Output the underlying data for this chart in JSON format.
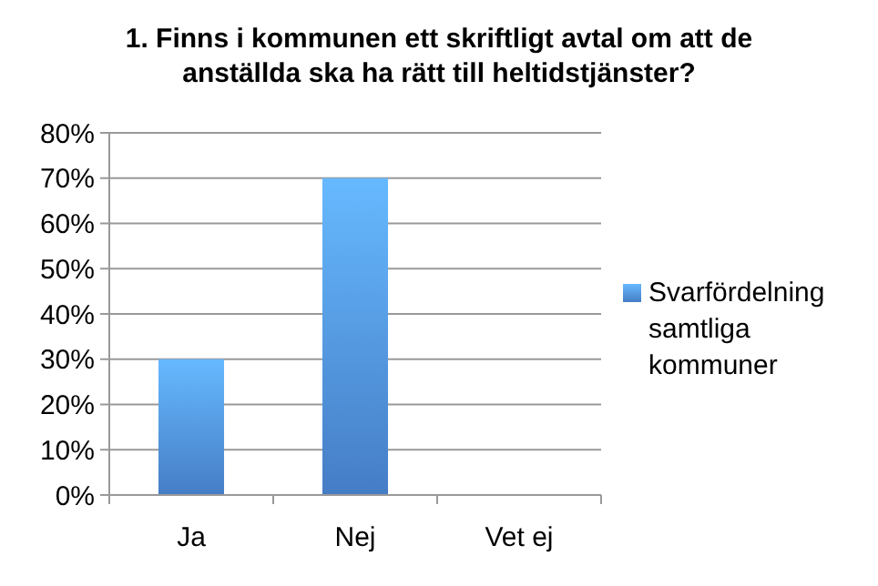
{
  "chart_data": {
    "type": "bar",
    "title": "1. Finns i kommunen ett skriftligt avtal om att de anställda ska ha rätt till heltidstjänster?",
    "categories": [
      "Ja",
      "Nej",
      "Vet ej"
    ],
    "series": [
      {
        "name": "Svarfördelning samtliga kommuner",
        "color": "#4a86d4",
        "values": [
          30,
          70,
          0
        ]
      }
    ],
    "ylim": [
      0,
      80
    ],
    "yticks": [
      {
        "value": 0,
        "label": "0%"
      },
      {
        "value": 10,
        "label": "10%"
      },
      {
        "value": 20,
        "label": "20%"
      },
      {
        "value": 30,
        "label": "30%"
      },
      {
        "value": 40,
        "label": "40%"
      },
      {
        "value": 50,
        "label": "50%"
      },
      {
        "value": 60,
        "label": "60%"
      },
      {
        "value": 70,
        "label": "70%"
      },
      {
        "value": 80,
        "label": "80%"
      }
    ],
    "grid": "y",
    "legend": "right"
  }
}
